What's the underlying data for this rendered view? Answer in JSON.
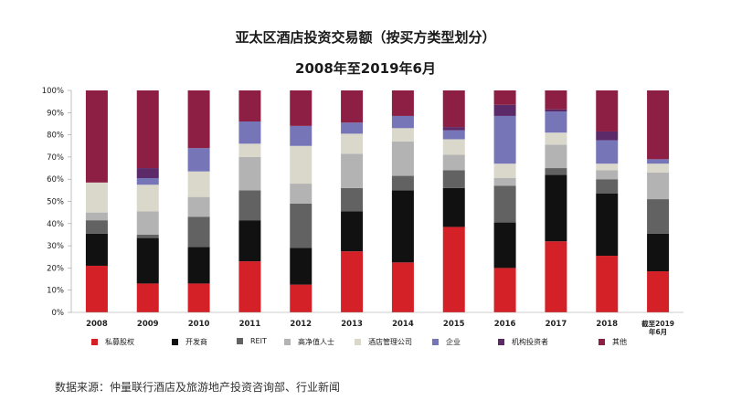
{
  "title": "亚太区酒店投资交易额（按买方类型划分）",
  "subtitle": "2008年至2019年6月",
  "source": "数据来源：仲量联行酒店及旅游地产投资咨询部、行业新闻",
  "chart_data": {
    "type": "bar",
    "stacked": true,
    "percent": true,
    "ylim": [
      0,
      100
    ],
    "yticks": [
      "0%",
      "10%",
      "20%",
      "30%",
      "40%",
      "50%",
      "60%",
      "70%",
      "80%",
      "90%",
      "100%"
    ],
    "grid": false,
    "legend_position": "bottom",
    "categories": [
      [
        "2008"
      ],
      [
        "2009"
      ],
      [
        "2010"
      ],
      [
        "2011"
      ],
      [
        "2012"
      ],
      [
        "2013"
      ],
      [
        "2014"
      ],
      [
        "2015"
      ],
      [
        "2016"
      ],
      [
        "2017"
      ],
      [
        "2018"
      ],
      [
        "截至2019",
        "年6月"
      ]
    ],
    "series": [
      {
        "name": "私募股权",
        "color": "#d42027",
        "values": [
          21,
          13,
          13,
          23,
          12.5,
          27.5,
          22.5,
          38.5,
          20,
          32,
          25.5,
          18.5
        ]
      },
      {
        "name": "开发商",
        "color": "#111111",
        "values": [
          14.5,
          20.5,
          16.5,
          18.5,
          16.5,
          18,
          32.5,
          17.5,
          20.5,
          30,
          28,
          17
        ]
      },
      {
        "name": "REIT",
        "color": "#626262",
        "values": [
          6,
          1.5,
          13.5,
          13.5,
          20,
          10.5,
          6.5,
          8,
          16.5,
          3,
          6.5,
          15.5
        ]
      },
      {
        "name": "高净值人士",
        "color": "#b3b3b3",
        "values": [
          3.5,
          10.5,
          9,
          15,
          9,
          15.5,
          15.5,
          7,
          3.5,
          10.5,
          4,
          12
        ]
      },
      {
        "name": "酒店管理公司",
        "color": "#dad7cb",
        "values": [
          13.5,
          12,
          11.5,
          6,
          17,
          9,
          6,
          7,
          6.5,
          5.5,
          3,
          4
        ]
      },
      {
        "name": "企业",
        "color": "#7575b8",
        "values": [
          0,
          3,
          10.5,
          10,
          9,
          5,
          5.5,
          4,
          21.5,
          9.5,
          10.5,
          2
        ]
      },
      {
        "name": "机构投资者",
        "color": "#5c2a68",
        "values": [
          0,
          4.5,
          0,
          0,
          0,
          0,
          0,
          1.5,
          5,
          1,
          4,
          0
        ]
      },
      {
        "name": "其他",
        "color": "#8d1f44",
        "values": [
          41.5,
          35,
          26,
          14,
          16,
          14.5,
          11.5,
          16.5,
          6.5,
          8.5,
          18.5,
          31
        ]
      }
    ]
  }
}
